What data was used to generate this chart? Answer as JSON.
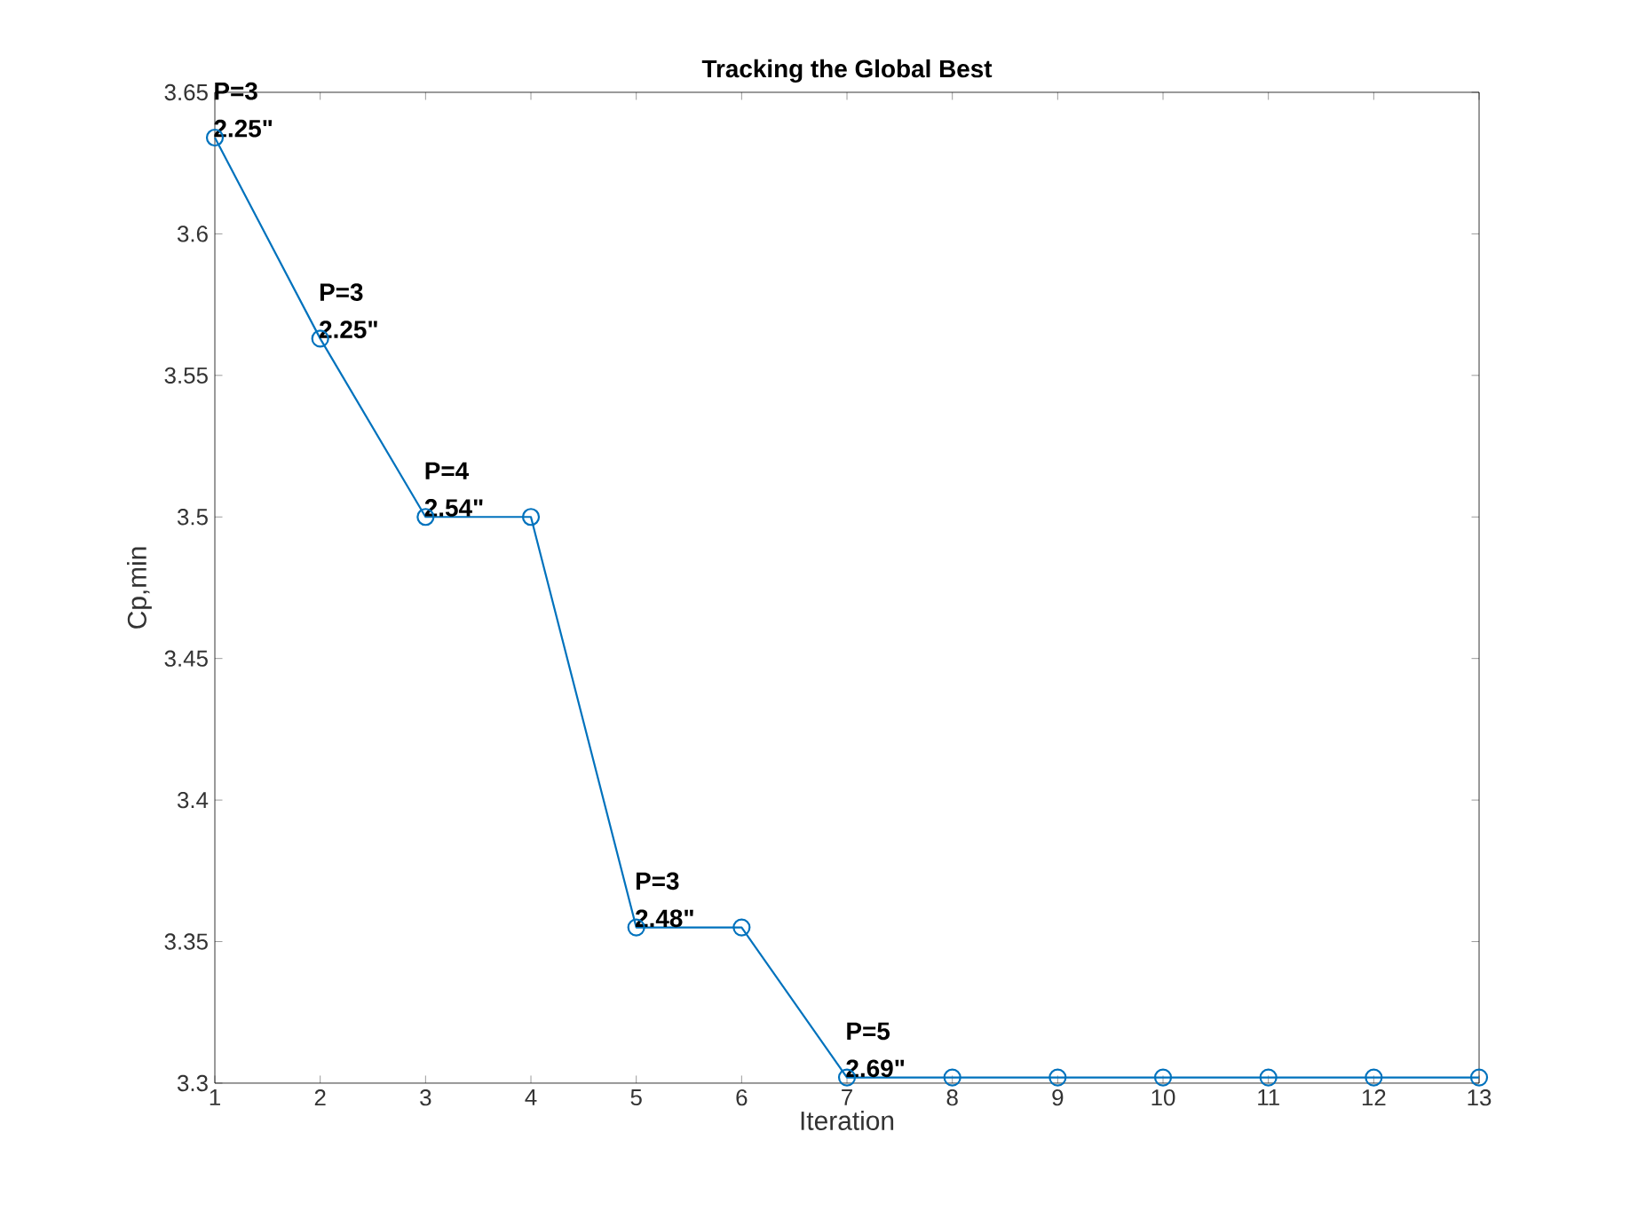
{
  "chart_data": {
    "type": "line",
    "title": "Tracking the Global Best",
    "xlabel": "Iteration",
    "ylabel": "Cp,min",
    "x": [
      1,
      2,
      3,
      4,
      5,
      6,
      7,
      8,
      9,
      10,
      11,
      12,
      13
    ],
    "values": [
      3.634,
      3.563,
      3.5,
      3.5,
      3.355,
      3.355,
      3.302,
      3.302,
      3.302,
      3.302,
      3.302,
      3.302,
      3.302
    ],
    "color": "#0072bd",
    "marker": "circle",
    "line_style": "solid",
    "xlim": [
      1,
      13
    ],
    "xticks": [
      1,
      2,
      3,
      4,
      5,
      6,
      7,
      8,
      9,
      10,
      11,
      12,
      13
    ],
    "ylim": [
      3.3,
      3.65
    ],
    "yticks": [
      3.3,
      3.35,
      3.4,
      3.45,
      3.5,
      3.55,
      3.6,
      3.65
    ],
    "annotations": [
      {
        "text": "P=3",
        "x": 1,
        "y": 3.634
      },
      {
        "text": "2.25\"",
        "x": 1,
        "y": 3.634
      },
      {
        "text": "P=3",
        "x": 2,
        "y": 3.563
      },
      {
        "text": "2.25\"",
        "x": 2,
        "y": 3.563
      },
      {
        "text": "P=4",
        "x": 3,
        "y": 3.5
      },
      {
        "text": "2.54\"",
        "x": 3,
        "y": 3.5
      },
      {
        "text": "P=3",
        "x": 5,
        "y": 3.355
      },
      {
        "text": "2.48\"",
        "x": 5,
        "y": 3.355
      },
      {
        "text": "P=5",
        "x": 7,
        "y": 3.302
      },
      {
        "text": "2.69\"",
        "x": 7,
        "y": 3.302
      }
    ]
  }
}
